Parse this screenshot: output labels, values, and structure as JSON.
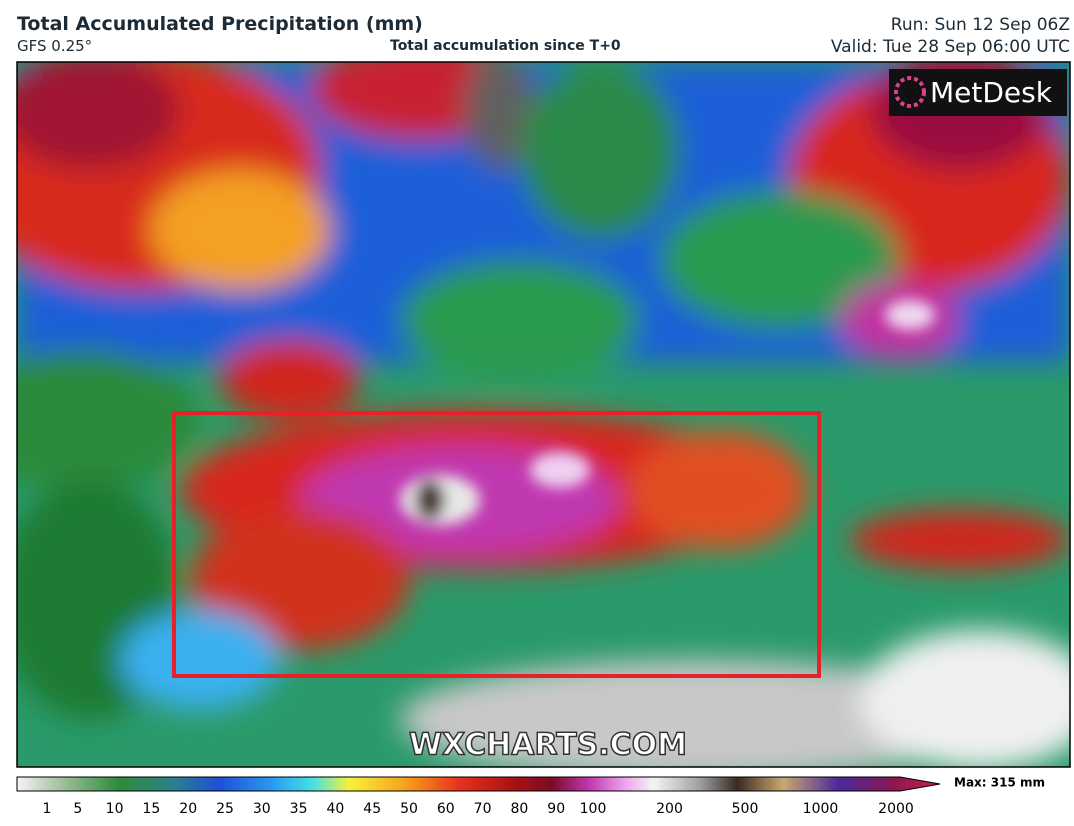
{
  "header": {
    "title": "Total Accumulated Precipitation (mm)",
    "model": "GFS 0.25°",
    "subtitle": "Total accumulation since T+0",
    "run": "Run: Sun 12 Sep 06Z",
    "valid": "Valid: Tue 28 Sep 06:00 UTC"
  },
  "logo": "MetDesk",
  "watermark": "WXCHARTS.COM",
  "legend": {
    "ticks": [
      1,
      5,
      10,
      15,
      20,
      25,
      30,
      35,
      40,
      45,
      50,
      60,
      70,
      80,
      90,
      100,
      200,
      500,
      1000,
      2000
    ],
    "max": "Max: 315 mm"
  }
}
